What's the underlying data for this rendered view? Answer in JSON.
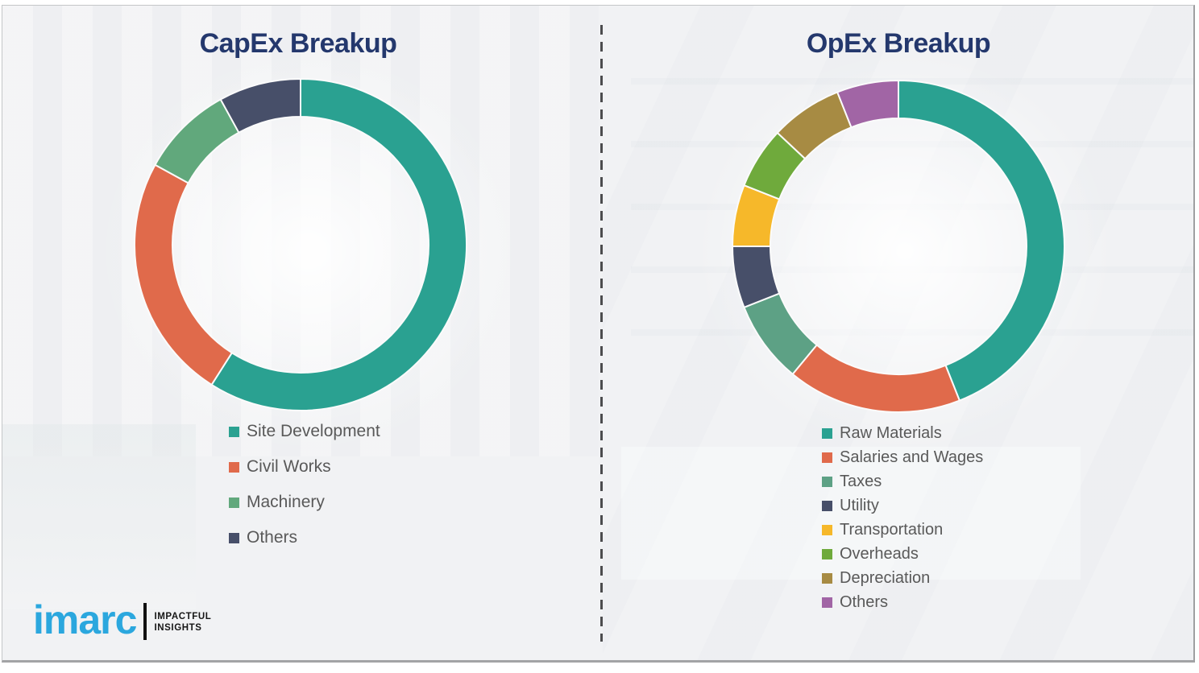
{
  "chart_data": [
    {
      "type": "pie",
      "variant": "donut",
      "title": "CapEx Breakup",
      "labels": [
        "Site Development",
        "Civil Works",
        "Machinery",
        "Others"
      ],
      "values": [
        59,
        24,
        9,
        8
      ],
      "colors": [
        "#2AA191",
        "#E06A4B",
        "#61A87C",
        "#474F69"
      ],
      "start_angle_deg": 0,
      "direction": "clockwise",
      "legend_position": "below-left",
      "title_color": "#24386D"
    },
    {
      "type": "pie",
      "variant": "donut",
      "title": "OpEx Breakup",
      "labels": [
        "Raw Materials",
        "Salaries and Wages",
        "Taxes",
        "Utility",
        "Transportation",
        "Overheads",
        "Depreciation",
        "Others"
      ],
      "values": [
        44,
        17,
        8,
        6,
        6,
        6,
        7,
        6
      ],
      "colors": [
        "#2AA191",
        "#E06A4B",
        "#5DA185",
        "#474F69",
        "#F6B82A",
        "#6FAA3C",
        "#A78B43",
        "#A165A5"
      ],
      "start_angle_deg": 0,
      "direction": "clockwise",
      "legend_position": "below-left",
      "title_color": "#24386D"
    }
  ],
  "branding": {
    "logo_text": "imarc",
    "tagline_line1": "IMPACTFUL",
    "tagline_line2": "INSIGHTS",
    "logo_color": "#2BA7DE"
  }
}
